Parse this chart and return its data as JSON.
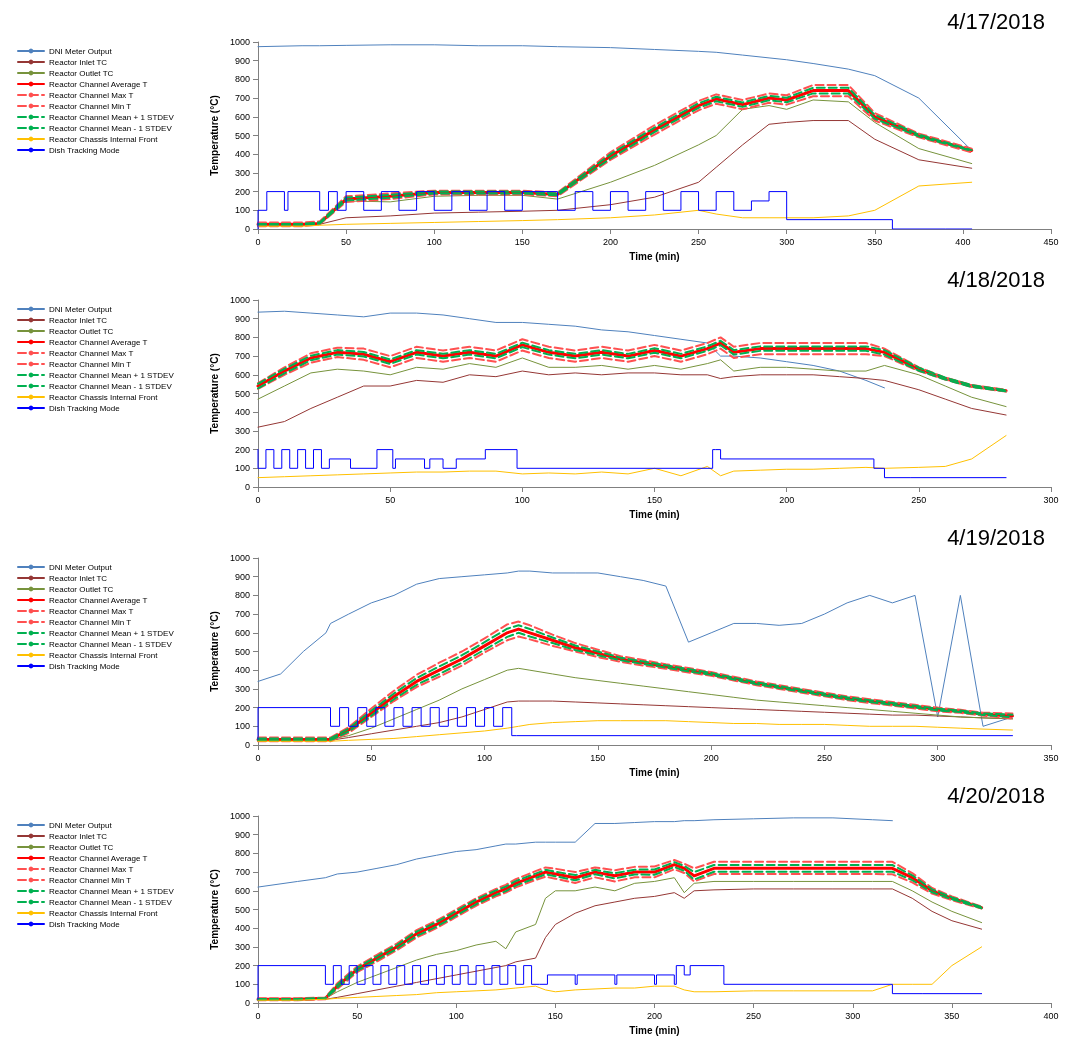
{
  "chart_data": [
    {
      "type": "line",
      "annotations": [
        "4/17/2018"
      ],
      "xlabel": "Time (min)",
      "ylabel": "Temperature (°C)",
      "xlim": [
        0,
        450
      ],
      "xticks": [
        0,
        50,
        100,
        150,
        200,
        250,
        300,
        350,
        400,
        450
      ],
      "ylim": [
        0,
        1000
      ],
      "yticks": [
        0,
        100,
        200,
        300,
        400,
        500,
        600,
        700,
        800,
        900,
        1000
      ],
      "legend": "top left",
      "marker": "none",
      "x": [
        0,
        25,
        35,
        50,
        75,
        100,
        125,
        150,
        170,
        200,
        225,
        250,
        260,
        275,
        290,
        300,
        315,
        335,
        350,
        375,
        405
      ],
      "series": [
        {
          "name": "DNI Meter Output",
          "color": "#4f81bd",
          "values": [
            975,
            980,
            980,
            982,
            985,
            985,
            980,
            980,
            975,
            970,
            960,
            950,
            945,
            930,
            915,
            905,
            885,
            855,
            820,
            700,
            420
          ]
        },
        {
          "name": "Reactor Inlet TC",
          "color": "#953735",
          "values": [
            20,
            20,
            25,
            60,
            70,
            85,
            90,
            95,
            100,
            130,
            170,
            250,
            330,
            450,
            560,
            570,
            580,
            580,
            480,
            370,
            325
          ]
        },
        {
          "name": "Reactor Outlet TC",
          "color": "#77933c",
          "values": [
            25,
            25,
            30,
            150,
            145,
            175,
            180,
            180,
            160,
            250,
            340,
            450,
            500,
            640,
            660,
            640,
            690,
            680,
            570,
            430,
            350
          ]
        },
        {
          "name": "Reactor Channel Average T",
          "color": "#ff0000",
          "values": [
            25,
            25,
            30,
            160,
            175,
            195,
            195,
            195,
            185,
            390,
            530,
            660,
            695,
            665,
            700,
            690,
            740,
            740,
            600,
            500,
            420
          ]
        },
        {
          "name": "Reactor Channel Max T",
          "color": "#ff5050",
          "line_style": "dashed",
          "values": [
            35,
            35,
            40,
            175,
            190,
            205,
            205,
            205,
            195,
            410,
            555,
            685,
            720,
            690,
            725,
            715,
            770,
            770,
            620,
            510,
            430
          ]
        },
        {
          "name": "Reactor Channel Min T",
          "color": "#ff5050",
          "line_style": "dashed",
          "values": [
            15,
            15,
            25,
            145,
            160,
            185,
            185,
            185,
            175,
            370,
            505,
            635,
            670,
            640,
            675,
            665,
            710,
            710,
            580,
            490,
            410
          ]
        },
        {
          "name": "Reactor Channel Mean + 1 STDEV",
          "color": "#00b050",
          "line_style": "dashed",
          "values": [
            27,
            27,
            35,
            168,
            183,
            200,
            200,
            200,
            190,
            400,
            542,
            672,
            707,
            677,
            712,
            702,
            755,
            755,
            610,
            505,
            422
          ]
        },
        {
          "name": "Reactor Channel Mean - 1 STDEV",
          "color": "#00b050",
          "line_style": "dashed",
          "values": [
            23,
            23,
            28,
            152,
            167,
            190,
            190,
            190,
            180,
            378,
            518,
            648,
            683,
            653,
            688,
            678,
            725,
            725,
            590,
            495,
            418
          ]
        },
        {
          "name": "Reactor Chassis Internal Front",
          "color": "#ffc000",
          "values": [
            15,
            15,
            20,
            25,
            30,
            35,
            40,
            45,
            50,
            60,
            75,
            100,
            80,
            60,
            60,
            60,
            60,
            70,
            100,
            230,
            250
          ]
        },
        {
          "name": "Dish Tracking Mode",
          "color": "#0000ff",
          "type": "step",
          "x": [
            0,
            5,
            15,
            17,
            35,
            40,
            45,
            50,
            60,
            70,
            80,
            90,
            100,
            110,
            120,
            130,
            140,
            150,
            170,
            180,
            190,
            200,
            210,
            220,
            230,
            240,
            250,
            260,
            270,
            280,
            290,
            300,
            360,
            390,
            405
          ],
          "values": [
            0,
            100,
            200,
            100,
            200,
            100,
            200,
            100,
            200,
            100,
            200,
            100,
            200,
            100,
            200,
            100,
            200,
            100,
            200,
            100,
            200,
            100,
            200,
            100,
            200,
            100,
            200,
            100,
            200,
            100,
            150,
            200,
            50,
            0,
            0
          ]
        }
      ]
    },
    {
      "type": "line",
      "annotations": [
        "4/18/2018"
      ],
      "xlabel": "Time (min)",
      "ylabel": "Temperature (°C)",
      "xlim": [
        0,
        300
      ],
      "xticks": [
        0,
        50,
        100,
        150,
        200,
        250,
        300
      ],
      "ylim": [
        0,
        1000
      ],
      "yticks": [
        0,
        100,
        200,
        300,
        400,
        500,
        600,
        700,
        800,
        900,
        1000
      ],
      "legend": "top left",
      "marker": "none",
      "x": [
        0,
        10,
        20,
        30,
        40,
        50,
        60,
        70,
        80,
        90,
        100,
        110,
        120,
        130,
        140,
        150,
        160,
        170,
        175,
        180,
        190,
        200,
        210,
        220,
        230,
        237,
        250,
        260,
        270,
        283
      ],
      "series": [
        {
          "name": "DNI Meter Output",
          "color": "#4f81bd",
          "values": [
            935,
            940,
            930,
            920,
            910,
            930,
            930,
            920,
            900,
            880,
            880,
            870,
            860,
            840,
            830,
            810,
            790,
            770,
            700,
            700,
            690,
            670,
            650,
            620,
            570,
            530,
            null,
            null,
            null,
            null
          ]
        },
        {
          "name": "Reactor Inlet TC",
          "color": "#953735",
          "values": [
            320,
            350,
            420,
            480,
            540,
            540,
            570,
            560,
            600,
            590,
            620,
            600,
            610,
            600,
            610,
            610,
            600,
            600,
            580,
            590,
            600,
            600,
            600,
            590,
            580,
            570,
            520,
            470,
            420,
            385
          ]
        },
        {
          "name": "Reactor Outlet TC",
          "color": "#77933c",
          "values": [
            470,
            540,
            610,
            630,
            620,
            600,
            640,
            630,
            660,
            640,
            690,
            640,
            640,
            650,
            630,
            650,
            630,
            660,
            680,
            620,
            640,
            640,
            630,
            620,
            620,
            650,
            600,
            540,
            480,
            430
          ]
        },
        {
          "name": "Reactor Channel Average T",
          "color": "#ff0000",
          "values": [
            540,
            620,
            690,
            720,
            710,
            670,
            720,
            700,
            720,
            700,
            760,
            720,
            700,
            720,
            700,
            730,
            700,
            740,
            770,
            720,
            740,
            740,
            740,
            740,
            740,
            720,
            630,
            580,
            540,
            515
          ]
        },
        {
          "name": "Reactor Channel Max T",
          "color": "#ff5050",
          "line_style": "dashed",
          "values": [
            555,
            640,
            715,
            745,
            740,
            700,
            750,
            730,
            750,
            730,
            790,
            750,
            730,
            750,
            730,
            760,
            730,
            770,
            800,
            750,
            770,
            770,
            770,
            770,
            770,
            740,
            640,
            585,
            545,
            520
          ]
        },
        {
          "name": "Reactor Channel Min T",
          "color": "#ff5050",
          "line_style": "dashed",
          "values": [
            525,
            600,
            665,
            695,
            680,
            640,
            690,
            670,
            690,
            670,
            730,
            690,
            670,
            690,
            670,
            700,
            670,
            710,
            740,
            690,
            710,
            710,
            710,
            710,
            710,
            700,
            620,
            575,
            535,
            510
          ]
        },
        {
          "name": "Reactor Channel Mean + 1 STDEV",
          "color": "#00b050",
          "line_style": "dashed",
          "values": [
            552,
            632,
            702,
            732,
            722,
            682,
            732,
            712,
            732,
            712,
            772,
            732,
            712,
            732,
            712,
            742,
            712,
            752,
            782,
            732,
            752,
            752,
            752,
            752,
            752,
            732,
            638,
            585,
            545,
            518
          ]
        },
        {
          "name": "Reactor Channel Mean - 1 STDEV",
          "color": "#00b050",
          "line_style": "dashed",
          "values": [
            528,
            608,
            678,
            708,
            698,
            658,
            708,
            688,
            708,
            688,
            748,
            708,
            688,
            708,
            688,
            718,
            688,
            728,
            758,
            708,
            728,
            728,
            728,
            728,
            728,
            708,
            622,
            575,
            535,
            512
          ]
        },
        {
          "name": "Reactor Chassis Internal Front",
          "color": "#ffc000",
          "values": [
            50,
            55,
            60,
            65,
            70,
            75,
            80,
            80,
            85,
            85,
            70,
            75,
            70,
            80,
            70,
            100,
            60,
            110,
            60,
            85,
            90,
            95,
            95,
            100,
            105,
            100,
            105,
            110,
            150,
            275
          ]
        },
        {
          "name": "Dish Tracking Mode",
          "color": "#0000ff",
          "type": "step",
          "x": [
            0,
            3,
            6,
            9,
            12,
            15,
            18,
            21,
            24,
            27,
            35,
            45,
            51,
            52,
            63,
            65,
            70,
            75,
            86,
            87,
            98,
            172,
            173,
            175,
            233,
            237,
            247,
            283
          ],
          "values": [
            200,
            100,
            200,
            100,
            200,
            100,
            200,
            100,
            200,
            100,
            150,
            100,
            200,
            100,
            150,
            100,
            150,
            100,
            150,
            200,
            200,
            100,
            200,
            200,
            150,
            100,
            50,
            50
          ]
        }
      ]
    },
    {
      "type": "line",
      "annotations": [
        "4/19/2018"
      ],
      "xlabel": "Time (min)",
      "ylabel": "Temperature (°C)",
      "xlim": [
        0,
        350
      ],
      "xticks": [
        0,
        50,
        100,
        150,
        200,
        250,
        300,
        350
      ],
      "ylim": [
        0,
        1000
      ],
      "yticks": [
        0,
        100,
        200,
        300,
        400,
        500,
        600,
        700,
        800,
        900,
        1000
      ],
      "legend": "top left",
      "marker": "none",
      "x": [
        0,
        10,
        20,
        30,
        32,
        40,
        50,
        60,
        70,
        80,
        90,
        100,
        110,
        115,
        120,
        130,
        140,
        150,
        160,
        170,
        180,
        190,
        200,
        210,
        220,
        230,
        240,
        250,
        260,
        270,
        280,
        290,
        300,
        310,
        320,
        333
      ],
      "series": [
        {
          "name": "DNI Meter Output",
          "color": "#4f81bd",
          "values": [
            340,
            380,
            500,
            600,
            650,
            700,
            760,
            800,
            860,
            890,
            900,
            910,
            920,
            930,
            930,
            920,
            920,
            920,
            900,
            880,
            850,
            550,
            600,
            650,
            650,
            640,
            650,
            700,
            760,
            800,
            760,
            800,
            150,
            800,
            100,
            150
          ]
        },
        {
          "name": "Reactor Inlet TC",
          "color": "#953735",
          "values": [
            null,
            null,
            null,
            25,
            25,
            40,
            60,
            80,
            100,
            120,
            150,
            190,
            230,
            235,
            235,
            235,
            230,
            225,
            220,
            215,
            210,
            205,
            200,
            195,
            190,
            185,
            180,
            175,
            170,
            165,
            160,
            160,
            155,
            150,
            145,
            140
          ]
        },
        {
          "name": "Reactor Outlet TC",
          "color": "#77933c",
          "values": [
            30,
            30,
            30,
            30,
            30,
            50,
            90,
            140,
            190,
            240,
            300,
            350,
            400,
            410,
            400,
            380,
            360,
            345,
            330,
            315,
            300,
            285,
            270,
            255,
            240,
            230,
            220,
            210,
            200,
            190,
            180,
            170,
            160,
            150,
            145,
            140
          ]
        },
        {
          "name": "Reactor Channel Average T",
          "color": "#ff0000",
          "values": [
            30,
            30,
            30,
            30,
            30,
            80,
            170,
            260,
            340,
            400,
            460,
            530,
            600,
            620,
            600,
            560,
            520,
            490,
            460,
            440,
            420,
            400,
            380,
            355,
            330,
            310,
            290,
            270,
            250,
            235,
            220,
            205,
            190,
            180,
            165,
            155
          ]
        },
        {
          "name": "Reactor Channel Max T",
          "color": "#ff5050",
          "line_style": "dashed",
          "values": [
            40,
            40,
            40,
            40,
            40,
            95,
            195,
            290,
            375,
            440,
            500,
            570,
            645,
            660,
            640,
            590,
            545,
            510,
            475,
            455,
            432,
            412,
            390,
            365,
            340,
            320,
            300,
            280,
            260,
            245,
            230,
            215,
            200,
            188,
            173,
            168
          ]
        },
        {
          "name": "Reactor Channel Min T",
          "color": "#ff5050",
          "line_style": "dashed",
          "values": [
            20,
            20,
            20,
            20,
            20,
            65,
            150,
            235,
            310,
            365,
            425,
            495,
            560,
            580,
            565,
            530,
            500,
            470,
            445,
            425,
            408,
            388,
            370,
            345,
            320,
            300,
            280,
            260,
            240,
            225,
            210,
            195,
            180,
            172,
            157,
            142
          ]
        },
        {
          "name": "Reactor Channel Mean + 1 STDEV",
          "color": "#00b050",
          "line_style": "dashed",
          "values": [
            35,
            35,
            35,
            35,
            35,
            88,
            183,
            275,
            358,
            420,
            480,
            550,
            622,
            640,
            620,
            575,
            532,
            500,
            467,
            447,
            426,
            406,
            385,
            360,
            335,
            315,
            295,
            275,
            255,
            240,
            225,
            210,
            195,
            184,
            169,
            162
          ]
        },
        {
          "name": "Reactor Channel Mean - 1 STDEV",
          "color": "#00b050",
          "line_style": "dashed",
          "values": [
            25,
            25,
            25,
            25,
            25,
            72,
            157,
            245,
            322,
            380,
            440,
            510,
            578,
            600,
            580,
            545,
            508,
            480,
            453,
            433,
            414,
            394,
            375,
            350,
            325,
            305,
            285,
            265,
            245,
            230,
            215,
            200,
            185,
            176,
            161,
            148
          ]
        },
        {
          "name": "Reactor Chassis Internal Front",
          "color": "#ffc000",
          "values": [
            20,
            20,
            20,
            20,
            20,
            25,
            30,
            35,
            45,
            55,
            65,
            75,
            90,
            100,
            110,
            120,
            125,
            130,
            130,
            130,
            130,
            125,
            120,
            115,
            115,
            110,
            110,
            110,
            105,
            100,
            100,
            100,
            95,
            90,
            85,
            80
          ]
        },
        {
          "name": "Dish Tracking Mode",
          "color": "#0000ff",
          "type": "step",
          "x": [
            0,
            32,
            36,
            40,
            44,
            48,
            52,
            56,
            60,
            64,
            68,
            72,
            76,
            80,
            84,
            88,
            92,
            96,
            100,
            104,
            108,
            112,
            114,
            333
          ],
          "values": [
            30,
            200,
            100,
            200,
            100,
            200,
            100,
            200,
            100,
            200,
            100,
            200,
            100,
            200,
            100,
            200,
            100,
            200,
            100,
            200,
            100,
            200,
            50,
            50
          ]
        }
      ]
    },
    {
      "type": "line",
      "annotations": [
        "4/20/2018"
      ],
      "xlabel": "Time (min)",
      "ylabel": "Temperature (°C)",
      "xlim": [
        0,
        400
      ],
      "xticks": [
        0,
        50,
        100,
        150,
        200,
        250,
        300,
        350,
        400
      ],
      "ylim": [
        0,
        1000
      ],
      "yticks": [
        0,
        100,
        200,
        300,
        400,
        500,
        600,
        700,
        800,
        900,
        1000
      ],
      "legend": "top left",
      "marker": "none",
      "x": [
        0,
        20,
        34,
        40,
        50,
        60,
        70,
        80,
        90,
        100,
        110,
        120,
        125,
        130,
        140,
        145,
        150,
        160,
        170,
        180,
        190,
        200,
        210,
        215,
        220,
        230,
        250,
        270,
        290,
        310,
        320,
        330,
        340,
        350,
        365
      ],
      "series": [
        {
          "name": "DNI Meter Output",
          "color": "#4f81bd",
          "values": [
            620,
            650,
            670,
            690,
            700,
            720,
            740,
            770,
            790,
            810,
            820,
            840,
            850,
            850,
            860,
            860,
            860,
            860,
            960,
            960,
            965,
            970,
            970,
            975,
            975,
            980,
            985,
            990,
            990,
            980,
            975,
            null,
            null,
            null,
            null
          ]
        },
        {
          "name": "Reactor Inlet TC",
          "color": "#953735",
          "values": [
            20,
            20,
            20,
            30,
            50,
            70,
            90,
            110,
            130,
            150,
            170,
            190,
            200,
            220,
            240,
            350,
            420,
            480,
            520,
            540,
            560,
            570,
            590,
            560,
            600,
            605,
            610,
            610,
            610,
            610,
            610,
            560,
            490,
            440,
            395
          ]
        },
        {
          "name": "Reactor Outlet TC",
          "color": "#77933c",
          "values": [
            20,
            20,
            25,
            60,
            110,
            150,
            190,
            230,
            260,
            280,
            310,
            330,
            290,
            380,
            420,
            560,
            600,
            600,
            620,
            600,
            640,
            650,
            670,
            590,
            640,
            650,
            650,
            650,
            650,
            650,
            650,
            600,
            540,
            490,
            430
          ]
        },
        {
          "name": "Reactor Channel Average T",
          "color": "#ff0000",
          "values": [
            20,
            20,
            25,
            90,
            180,
            240,
            300,
            370,
            420,
            480,
            540,
            590,
            610,
            640,
            680,
            700,
            690,
            670,
            700,
            680,
            700,
            700,
            740,
            720,
            680,
            720,
            720,
            720,
            720,
            720,
            720,
            670,
            600,
            560,
            510
          ]
        },
        {
          "name": "Reactor Channel Max T",
          "color": "#ff5050",
          "line_style": "dashed",
          "values": [
            25,
            25,
            30,
            105,
            195,
            258,
            318,
            390,
            440,
            500,
            560,
            610,
            632,
            662,
            705,
            725,
            718,
            700,
            725,
            710,
            728,
            730,
            765,
            745,
            720,
            755,
            755,
            755,
            755,
            755,
            755,
            695,
            615,
            570,
            515
          ]
        },
        {
          "name": "Reactor Channel Min T",
          "color": "#ff5050",
          "line_style": "dashed",
          "values": [
            15,
            15,
            20,
            75,
            165,
            222,
            282,
            350,
            400,
            460,
            520,
            570,
            590,
            618,
            658,
            675,
            665,
            642,
            672,
            650,
            672,
            672,
            715,
            695,
            650,
            690,
            690,
            690,
            690,
            690,
            688,
            645,
            585,
            550,
            505
          ]
        },
        {
          "name": "Reactor Channel Mean + 1 STDEV",
          "color": "#00b050",
          "line_style": "dashed",
          "values": [
            22,
            22,
            27,
            98,
            188,
            250,
            310,
            382,
            432,
            492,
            552,
            602,
            622,
            652,
            692,
            712,
            702,
            684,
            712,
            694,
            713,
            714,
            753,
            733,
            700,
            738,
            738,
            738,
            738,
            738,
            738,
            683,
            608,
            565,
            513
          ]
        },
        {
          "name": "Reactor Channel Mean - 1 STDEV",
          "color": "#00b050",
          "line_style": "dashed",
          "values": [
            18,
            18,
            23,
            82,
            172,
            230,
            290,
            358,
            408,
            468,
            528,
            578,
            598,
            628,
            668,
            688,
            678,
            656,
            688,
            666,
            687,
            686,
            727,
            707,
            660,
            702,
            702,
            702,
            702,
            702,
            702,
            657,
            592,
            555,
            507
          ]
        },
        {
          "name": "Reactor Chassis Internal Front",
          "color": "#ffc000",
          "values": [
            15,
            15,
            20,
            25,
            30,
            35,
            40,
            45,
            55,
            60,
            65,
            70,
            75,
            80,
            90,
            70,
            60,
            70,
            75,
            80,
            80,
            90,
            90,
            70,
            60,
            60,
            65,
            65,
            65,
            65,
            100,
            100,
            100,
            200,
            300
          ]
        },
        {
          "name": "Dish Tracking Mode",
          "color": "#0000ff",
          "type": "step",
          "x": [
            0,
            34,
            38,
            42,
            46,
            50,
            54,
            58,
            62,
            66,
            70,
            74,
            78,
            82,
            86,
            90,
            94,
            98,
            102,
            106,
            110,
            114,
            118,
            122,
            126,
            130,
            134,
            138,
            142,
            146,
            160,
            161,
            180,
            181,
            200,
            201,
            210,
            211,
            215,
            218,
            233,
            235,
            320,
            335,
            365
          ],
          "values": [
            20,
            200,
            100,
            200,
            100,
            200,
            100,
            200,
            100,
            200,
            100,
            200,
            100,
            200,
            100,
            200,
            100,
            200,
            100,
            200,
            100,
            200,
            100,
            200,
            100,
            200,
            100,
            200,
            100,
            100,
            150,
            100,
            150,
            100,
            150,
            100,
            150,
            100,
            200,
            150,
            200,
            200,
            100,
            50,
            50
          ]
        }
      ]
    }
  ]
}
